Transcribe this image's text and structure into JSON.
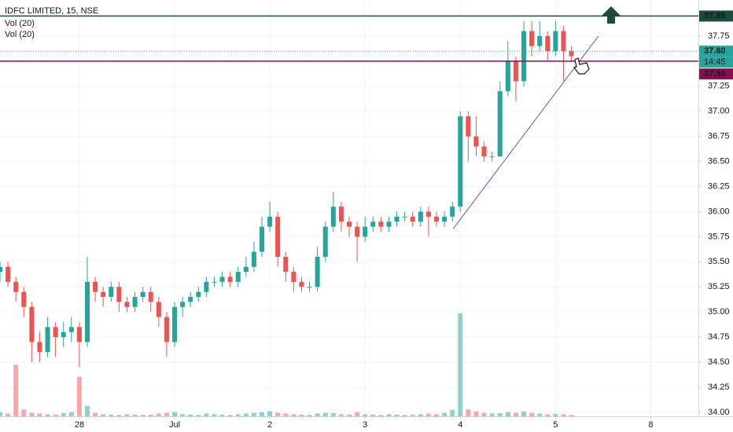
{
  "chart_data": {
    "type": "candlestick",
    "title": "IDFC LIMITED, 15, NSE",
    "indicators": [
      "Vol (20)",
      "Vol (20)"
    ],
    "up_color": "#26a69a",
    "down_color": "#ef5350",
    "grid": true,
    "x": [
      0,
      1,
      2,
      3,
      4,
      5,
      6,
      7,
      8,
      9,
      10,
      11,
      12,
      13,
      14,
      15,
      16,
      17,
      18,
      19,
      20,
      21,
      22,
      23,
      24,
      25,
      26,
      27,
      28,
      29,
      30,
      31,
      32,
      33,
      34,
      35,
      36,
      37,
      38,
      39,
      40,
      41,
      42,
      43,
      44,
      45,
      46,
      47,
      48,
      49,
      50,
      51,
      52,
      53,
      54,
      55,
      56,
      57,
      58,
      59,
      60,
      61,
      62,
      63,
      64,
      65,
      66,
      67,
      68,
      69,
      70,
      71,
      72
    ],
    "open": [
      35.4,
      35.45,
      35.3,
      35.2,
      35.05,
      34.7,
      34.6,
      34.85,
      34.75,
      34.8,
      34.85,
      34.7,
      35.3,
      35.2,
      35.15,
      35.25,
      35.1,
      35.05,
      35.15,
      35.2,
      35.1,
      34.95,
      34.7,
      35.05,
      35.1,
      35.15,
      35.2,
      35.3,
      35.3,
      35.35,
      35.3,
      35.4,
      35.45,
      35.6,
      35.85,
      35.95,
      35.55,
      35.4,
      35.3,
      35.25,
      35.25,
      35.55,
      35.85,
      36.05,
      35.9,
      35.85,
      35.75,
      35.85,
      35.9,
      35.85,
      35.9,
      35.95,
      35.95,
      35.9,
      36.0,
      35.95,
      35.9,
      35.95,
      36.05,
      36.95,
      36.75,
      36.65,
      36.55,
      36.55,
      37.2,
      37.5,
      37.3,
      37.8,
      37.65,
      37.75,
      37.6,
      37.8,
      37.6
    ],
    "high": [
      35.5,
      35.5,
      35.35,
      35.25,
      35.1,
      34.8,
      34.95,
      34.9,
      34.9,
      34.95,
      34.9,
      35.55,
      35.35,
      35.25,
      35.3,
      35.3,
      35.15,
      35.2,
      35.25,
      35.25,
      35.15,
      35.0,
      35.1,
      35.15,
      35.2,
      35.25,
      35.35,
      35.35,
      35.4,
      35.4,
      35.45,
      35.55,
      35.7,
      35.95,
      36.1,
      36.0,
      35.6,
      35.45,
      35.35,
      35.3,
      35.65,
      35.9,
      36.2,
      36.1,
      35.95,
      35.9,
      35.95,
      35.95,
      35.95,
      35.95,
      36.0,
      36.0,
      36.0,
      36.05,
      36.05,
      36.0,
      36.0,
      36.1,
      37.0,
      37.0,
      36.95,
      36.7,
      36.6,
      37.3,
      37.7,
      37.55,
      37.9,
      37.9,
      37.9,
      37.8,
      37.9,
      37.85,
      37.65
    ],
    "low": [
      35.3,
      35.25,
      35.1,
      34.95,
      34.5,
      34.5,
      34.55,
      34.55,
      34.65,
      34.7,
      34.45,
      34.65,
      35.1,
      35.05,
      35.1,
      35.0,
      35.0,
      35.0,
      35.1,
      35.0,
      34.85,
      34.55,
      34.65,
      34.95,
      35.05,
      35.1,
      35.15,
      35.25,
      35.25,
      35.25,
      35.25,
      35.35,
      35.4,
      35.55,
      35.8,
      35.45,
      35.3,
      35.2,
      35.2,
      35.2,
      35.2,
      35.5,
      35.8,
      35.8,
      35.75,
      35.5,
      35.7,
      35.8,
      35.8,
      35.8,
      35.85,
      35.9,
      35.85,
      35.85,
      35.75,
      35.85,
      35.85,
      35.9,
      36.0,
      36.5,
      36.55,
      36.5,
      36.5,
      36.55,
      37.15,
      37.1,
      37.25,
      37.55,
      37.6,
      37.5,
      37.55,
      37.3,
      37.5
    ],
    "close": [
      35.45,
      35.3,
      35.2,
      35.05,
      34.7,
      34.6,
      34.85,
      34.75,
      34.8,
      34.85,
      34.7,
      35.3,
      35.2,
      35.15,
      35.25,
      35.1,
      35.05,
      35.15,
      35.2,
      35.1,
      34.95,
      34.7,
      35.05,
      35.1,
      35.15,
      35.2,
      35.3,
      35.3,
      35.35,
      35.3,
      35.4,
      35.45,
      35.6,
      35.85,
      35.95,
      35.55,
      35.4,
      35.3,
      35.25,
      35.25,
      35.55,
      35.85,
      36.05,
      35.9,
      35.85,
      35.75,
      35.85,
      35.9,
      35.85,
      35.9,
      35.95,
      35.95,
      35.9,
      36.0,
      35.95,
      35.9,
      35.95,
      36.05,
      36.95,
      36.75,
      36.65,
      36.55,
      36.55,
      37.2,
      37.5,
      37.3,
      37.8,
      37.65,
      37.75,
      37.6,
      37.8,
      37.6,
      37.55
    ],
    "volume": [
      12,
      8,
      150,
      20,
      10,
      8,
      6,
      5,
      9,
      12,
      115,
      30,
      10,
      6,
      5,
      4,
      6,
      5,
      4,
      5,
      8,
      10,
      12,
      6,
      5,
      4,
      8,
      6,
      5,
      4,
      6,
      8,
      10,
      12,
      15,
      10,
      8,
      6,
      5,
      4,
      8,
      10,
      9,
      6,
      5,
      12,
      6,
      5,
      4,
      6,
      5,
      4,
      5,
      6,
      8,
      6,
      10,
      18,
      300,
      20,
      14,
      10,
      8,
      9,
      12,
      10,
      14,
      10,
      8,
      6,
      7,
      6,
      4
    ],
    "xlim": [
      0,
      88
    ],
    "xticks": [
      {
        "value": 10,
        "label": "28"
      },
      {
        "value": 22,
        "label": "Jul"
      },
      {
        "value": 34,
        "label": "2"
      },
      {
        "value": 46,
        "label": "3"
      },
      {
        "value": 58,
        "label": "4"
      },
      {
        "value": 70,
        "label": "5"
      },
      {
        "value": 82,
        "label": "8"
      }
    ],
    "ylim": [
      33.96,
      38.11
    ],
    "yticks": [
      {
        "value": 34,
        "label": "34.00"
      },
      34.25,
      {
        "value": 34.5,
        "label": "34.50"
      },
      34.75,
      {
        "value": 35,
        "label": "35.00"
      },
      35.25,
      {
        "value": 35.5,
        "label": "35.50"
      },
      35.75,
      {
        "value": 36,
        "label": "36.00"
      },
      36.25,
      {
        "value": 36.5,
        "label": "36.50"
      },
      36.75,
      {
        "value": 37,
        "label": "37.00"
      },
      37.25,
      {
        "value": 37.5,
        "label": "37.50"
      },
      37.75
    ],
    "y2lim": [
      0,
      400
    ],
    "levels": [
      {
        "value": 37.95,
        "label": "37.95",
        "color": "#1b4b3e",
        "style": "solid"
      },
      {
        "value": 37.6,
        "label": "37.60",
        "color": "#26a69a",
        "style": "dotted"
      },
      {
        "value": 37.5,
        "label": "37.50",
        "color": "#880e4f",
        "style": "solid"
      }
    ],
    "countdown": "14:45",
    "trendline": {
      "x": [
        57.1,
        75.4
      ],
      "y": [
        35.83,
        37.75
      ],
      "color": "#5b5bd6"
    }
  }
}
